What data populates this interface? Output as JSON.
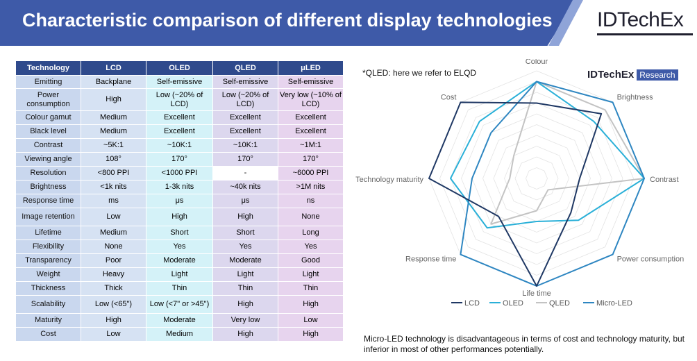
{
  "header": {
    "title": "Characteristic comparison of different display technologies",
    "brand": "IDTechEx"
  },
  "table": {
    "columns": [
      "Technology",
      "LCD",
      "OLED",
      "QLED",
      "μLED"
    ],
    "rows": [
      {
        "label": "Emitting",
        "values": [
          "Backplane",
          "Self-emissive",
          "Self-emissive",
          "Self-emissive"
        ]
      },
      {
        "label": "Power consumption",
        "values": [
          "High",
          "Low (~20% of LCD)",
          "Low (~20% of LCD)",
          "Very low (~10% of LCD)"
        ]
      },
      {
        "label": "Colour gamut",
        "values": [
          "Medium",
          "Excellent",
          "Excellent",
          "Excellent"
        ]
      },
      {
        "label": "Black level",
        "values": [
          "Medium",
          "Excellent",
          "Excellent",
          "Excellent"
        ]
      },
      {
        "label": "Contrast",
        "values": [
          "~5K:1",
          "~10K:1",
          "~10K:1",
          "~1M:1"
        ]
      },
      {
        "label": "Viewing angle",
        "values": [
          "108°",
          "170°",
          "170°",
          "170°"
        ]
      },
      {
        "label": "Resolution",
        "values": [
          "<800 PPI",
          "<1000 PPI",
          "-",
          "~6000 PPI"
        ]
      },
      {
        "label": "Brightness",
        "values": [
          "<1k nits",
          "1-3k nits",
          "~40k nits",
          ">1M nits"
        ]
      },
      {
        "label": "Response time",
        "values": [
          "ms",
          "μs",
          "μs",
          "ns"
        ]
      },
      {
        "label": "Image retention",
        "values": [
          "Low",
          "High",
          "High",
          "None"
        ]
      },
      {
        "label": "Lifetime",
        "values": [
          "Medium",
          "Short",
          "Short",
          "Long"
        ]
      },
      {
        "label": "Flexibility",
        "values": [
          "None",
          "Yes",
          "Yes",
          "Yes"
        ]
      },
      {
        "label": "Transparency",
        "values": [
          "Poor",
          "Moderate",
          "Moderate",
          "Good"
        ]
      },
      {
        "label": "Weight",
        "values": [
          "Heavy",
          "Light",
          "Light",
          "Light"
        ]
      },
      {
        "label": "Thickness",
        "values": [
          "Thick",
          "Thin",
          "Thin",
          "Thin"
        ]
      },
      {
        "label": "Scalability",
        "values": [
          "Low (<65\")",
          "Low (<7\" or >45\")",
          "High",
          "High"
        ]
      },
      {
        "label": "Maturity",
        "values": [
          "High",
          "Moderate",
          "Very low",
          "Low"
        ]
      },
      {
        "label": "Cost",
        "values": [
          "Low",
          "Medium",
          "High",
          "High"
        ]
      }
    ]
  },
  "note": "*QLED: here we refer to ELQD",
  "badge": {
    "name": "IDTechEx",
    "tag": "Research"
  },
  "caption": "Micro-LED technology is disadvantageous in terms of cost and technology maturity, but inferior in most of other performances potentially.",
  "colors": {
    "banner": "#3e5aa8",
    "header_row": "#2f4a8c",
    "LCD": "#1f3864",
    "OLED": "#2ab0d8",
    "QLED": "#c3c3c3",
    "Micro-LED": "#2e86c1"
  },
  "chart_data": {
    "type": "radar",
    "axes": [
      "Colour",
      "Brightness",
      "Contrast",
      "Power consumption",
      "Life time",
      "Response time",
      "Technology maturity",
      "Cost"
    ],
    "range": [
      0,
      10
    ],
    "rings": 10,
    "series": [
      {
        "name": "LCD",
        "values": [
          7,
          8.5,
          4,
          4.5,
          10,
          5,
          10,
          10
        ]
      },
      {
        "name": "OLED",
        "values": [
          9,
          7.5,
          10,
          5.5,
          4,
          6.5,
          8,
          7.5
        ]
      },
      {
        "name": "QLED",
        "values": [
          9,
          9,
          10,
          1.5,
          3,
          6,
          2.5,
          3
        ]
      },
      {
        "name": "Micro-LED",
        "values": [
          9,
          10,
          10,
          10,
          10,
          10,
          6,
          6
        ]
      }
    ]
  }
}
